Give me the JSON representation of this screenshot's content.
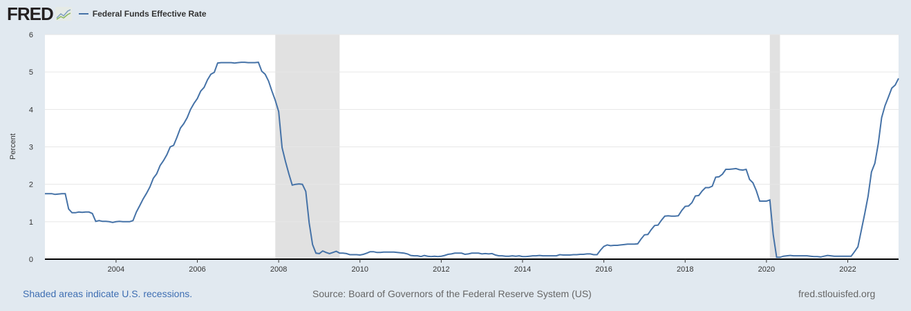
{
  "header": {
    "logo": "FRED",
    "legend": "Federal Funds Effective Rate"
  },
  "footer": {
    "recession_note": "Shaded areas indicate U.S. recessions.",
    "source": "Source: Board of Governors of the Federal Reserve System (US)",
    "site": "fred.stlouisfed.org"
  },
  "colors": {
    "series": "#4572a7",
    "recession": "#e1e1e1",
    "link": "#3e6eb2"
  },
  "chart_data": {
    "type": "line",
    "title": "Federal Funds Effective Rate",
    "xlabel": "",
    "ylabel": "Percent",
    "ylim": [
      0,
      6
    ],
    "xlim": [
      2002.25,
      2023.25
    ],
    "yticks": [
      "0",
      "1",
      "2",
      "3",
      "4",
      "5",
      "6"
    ],
    "xticks": [
      "2004",
      "2006",
      "2008",
      "2010",
      "2012",
      "2014",
      "2016",
      "2018",
      "2020",
      "2022"
    ],
    "recessions": [
      [
        2007.917,
        2009.5
      ],
      [
        2020.083,
        2020.333
      ]
    ],
    "start": "2002-04",
    "frequency": "monthly",
    "series": [
      {
        "name": "Federal Funds Effective Rate",
        "values": [
          1.75,
          1.75,
          1.75,
          1.73,
          1.74,
          1.75,
          1.75,
          1.34,
          1.24,
          1.24,
          1.26,
          1.25,
          1.26,
          1.26,
          1.22,
          1.01,
          1.03,
          1.01,
          1.01,
          1.0,
          0.98,
          1.0,
          1.01,
          1.0,
          1.0,
          1.0,
          1.03,
          1.26,
          1.43,
          1.61,
          1.76,
          1.93,
          2.16,
          2.28,
          2.5,
          2.63,
          2.79,
          3.0,
          3.04,
          3.26,
          3.5,
          3.62,
          3.78,
          4.0,
          4.16,
          4.29,
          4.49,
          4.59,
          4.79,
          4.94,
          4.99,
          5.24,
          5.25,
          5.25,
          5.25,
          5.25,
          5.24,
          5.25,
          5.26,
          5.26,
          5.25,
          5.25,
          5.25,
          5.26,
          5.02,
          4.94,
          4.76,
          4.49,
          4.24,
          3.94,
          2.98,
          2.61,
          2.28,
          1.98,
          2.0,
          2.01,
          2.0,
          1.81,
          0.97,
          0.39,
          0.16,
          0.15,
          0.22,
          0.18,
          0.15,
          0.18,
          0.21,
          0.16,
          0.16,
          0.15,
          0.12,
          0.12,
          0.12,
          0.11,
          0.13,
          0.16,
          0.2,
          0.2,
          0.18,
          0.18,
          0.19,
          0.19,
          0.19,
          0.19,
          0.18,
          0.17,
          0.16,
          0.14,
          0.1,
          0.09,
          0.09,
          0.07,
          0.1,
          0.08,
          0.07,
          0.08,
          0.07,
          0.08,
          0.1,
          0.13,
          0.14,
          0.16,
          0.16,
          0.16,
          0.13,
          0.14,
          0.16,
          0.16,
          0.16,
          0.14,
          0.15,
          0.14,
          0.15,
          0.11,
          0.09,
          0.09,
          0.08,
          0.08,
          0.09,
          0.08,
          0.09,
          0.07,
          0.07,
          0.08,
          0.09,
          0.09,
          0.1,
          0.09,
          0.09,
          0.09,
          0.09,
          0.09,
          0.12,
          0.11,
          0.11,
          0.11,
          0.12,
          0.12,
          0.13,
          0.13,
          0.14,
          0.14,
          0.12,
          0.12,
          0.24,
          0.34,
          0.38,
          0.36,
          0.37,
          0.37,
          0.38,
          0.39,
          0.4,
          0.4,
          0.4,
          0.41,
          0.54,
          0.65,
          0.66,
          0.79,
          0.9,
          0.91,
          1.04,
          1.15,
          1.16,
          1.15,
          1.15,
          1.16,
          1.3,
          1.41,
          1.42,
          1.51,
          1.69,
          1.7,
          1.82,
          1.91,
          1.91,
          1.95,
          2.19,
          2.2,
          2.27,
          2.4,
          2.4,
          2.41,
          2.42,
          2.39,
          2.38,
          2.4,
          2.13,
          2.04,
          1.83,
          1.55,
          1.55,
          1.55,
          1.58,
          0.65,
          0.05,
          0.05,
          0.08,
          0.09,
          0.1,
          0.09,
          0.09,
          0.09,
          0.09,
          0.09,
          0.08,
          0.07,
          0.07,
          0.06,
          0.08,
          0.1,
          0.09,
          0.08,
          0.08,
          0.08,
          0.08,
          0.08,
          0.08,
          0.2,
          0.33,
          0.77,
          1.21,
          1.68,
          2.33,
          2.56,
          3.08,
          3.78,
          4.1,
          4.33,
          4.57,
          4.65,
          4.83
        ]
      }
    ]
  }
}
